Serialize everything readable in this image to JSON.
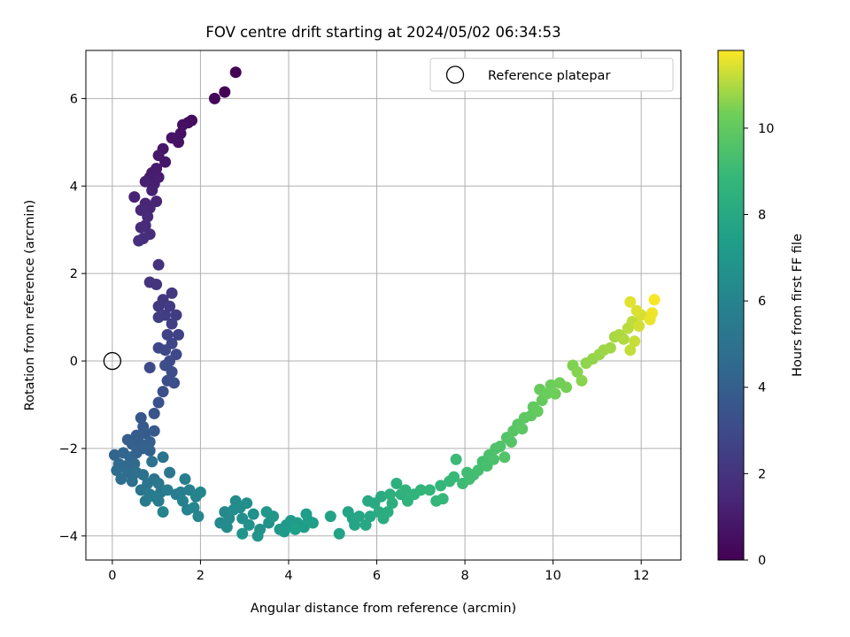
{
  "chart_data": {
    "type": "scatter",
    "title": "FOV centre drift starting at 2024/05/02 06:34:53",
    "xlabel": "Angular distance from reference (arcmin)",
    "ylabel": "Rotation from reference (arcmin)",
    "xlim": [
      -0.6,
      12.9
    ],
    "ylim": [
      -4.55,
      7.1
    ],
    "x_ticks": [
      0,
      2,
      4,
      6,
      8,
      10,
      12
    ],
    "y_ticks": [
      -4,
      -2,
      0,
      2,
      4,
      6
    ],
    "grid": true,
    "colormap": "viridis",
    "colorbar": {
      "label": "Hours from first FF file",
      "range": [
        0,
        11.8
      ],
      "ticks": [
        0,
        2,
        4,
        6,
        8,
        10
      ]
    },
    "legend": {
      "position": "top-right",
      "entries": [
        "Reference platepar"
      ]
    },
    "reference_point": {
      "x": 0,
      "y": 0
    },
    "points": [
      [
        2.8,
        6.6,
        0.0
      ],
      [
        2.55,
        6.15,
        0.08
      ],
      [
        2.32,
        6.0,
        0.15
      ],
      [
        1.8,
        5.5,
        0.35
      ],
      [
        1.72,
        5.45,
        0.45
      ],
      [
        1.6,
        5.4,
        0.55
      ],
      [
        1.55,
        5.2,
        0.6
      ],
      [
        1.5,
        5.0,
        0.65
      ],
      [
        1.35,
        5.1,
        0.7
      ],
      [
        1.15,
        4.85,
        0.8
      ],
      [
        1.2,
        4.55,
        0.85
      ],
      [
        1.05,
        4.7,
        0.9
      ],
      [
        1.0,
        4.4,
        0.95
      ],
      [
        0.9,
        4.3,
        1.0
      ],
      [
        0.85,
        4.2,
        1.05
      ],
      [
        1.05,
        4.2,
        1.1
      ],
      [
        0.95,
        4.05,
        1.15
      ],
      [
        0.75,
        4.1,
        1.2
      ],
      [
        0.9,
        3.9,
        1.25
      ],
      [
        0.5,
        3.75,
        1.3
      ],
      [
        0.75,
        3.6,
        1.35
      ],
      [
        1.0,
        3.65,
        1.4
      ],
      [
        0.85,
        3.5,
        1.45
      ],
      [
        0.65,
        3.45,
        1.5
      ],
      [
        0.8,
        3.3,
        1.55
      ],
      [
        0.75,
        3.1,
        1.6
      ],
      [
        0.65,
        3.05,
        1.65
      ],
      [
        0.85,
        2.9,
        1.7
      ],
      [
        0.7,
        2.8,
        1.75
      ],
      [
        0.6,
        2.75,
        1.8
      ],
      [
        1.05,
        2.2,
        1.9
      ],
      [
        0.85,
        1.8,
        2.0
      ],
      [
        1.0,
        1.75,
        2.05
      ],
      [
        1.35,
        1.55,
        2.15
      ],
      [
        1.15,
        1.4,
        2.2
      ],
      [
        1.05,
        1.25,
        2.25
      ],
      [
        1.3,
        1.25,
        2.3
      ],
      [
        1.45,
        1.05,
        2.35
      ],
      [
        1.2,
        1.05,
        2.4
      ],
      [
        1.05,
        1.0,
        2.45
      ],
      [
        1.35,
        0.85,
        2.55
      ],
      [
        1.5,
        0.6,
        2.65
      ],
      [
        1.25,
        0.6,
        2.7
      ],
      [
        1.35,
        0.4,
        2.8
      ],
      [
        1.05,
        0.3,
        2.85
      ],
      [
        1.2,
        0.25,
        2.9
      ],
      [
        1.45,
        0.15,
        2.95
      ],
      [
        1.3,
        0.0,
        3.0
      ],
      [
        0.85,
        -0.15,
        3.05
      ],
      [
        1.2,
        -0.1,
        3.1
      ],
      [
        1.35,
        -0.25,
        3.15
      ],
      [
        1.25,
        -0.45,
        3.2
      ],
      [
        1.4,
        -0.5,
        3.25
      ],
      [
        1.15,
        -0.7,
        3.3
      ],
      [
        1.05,
        -0.95,
        3.4
      ],
      [
        0.95,
        -1.2,
        3.5
      ],
      [
        0.65,
        -1.3,
        3.6
      ],
      [
        0.7,
        -1.5,
        3.7
      ],
      [
        0.95,
        -1.6,
        3.75
      ],
      [
        0.75,
        -1.65,
        3.8
      ],
      [
        0.55,
        -1.7,
        3.85
      ],
      [
        0.35,
        -1.8,
        3.9
      ],
      [
        0.6,
        -1.85,
        3.95
      ],
      [
        0.85,
        -1.85,
        4.0
      ],
      [
        0.45,
        -1.9,
        4.05
      ],
      [
        0.7,
        -2.0,
        4.1
      ],
      [
        0.55,
        -2.1,
        4.15
      ],
      [
        0.85,
        -2.05,
        4.2
      ],
      [
        0.05,
        -2.15,
        4.3
      ],
      [
        0.25,
        -2.1,
        4.35
      ],
      [
        0.4,
        -2.2,
        4.4
      ],
      [
        0.15,
        -2.35,
        4.5
      ],
      [
        0.3,
        -2.4,
        4.55
      ],
      [
        0.5,
        -2.35,
        4.6
      ],
      [
        0.1,
        -2.5,
        4.65
      ],
      [
        0.35,
        -2.55,
        4.7
      ],
      [
        0.2,
        -2.7,
        4.75
      ],
      [
        0.55,
        -2.55,
        4.8
      ],
      [
        0.45,
        -2.75,
        4.9
      ],
      [
        0.7,
        -2.6,
        4.95
      ],
      [
        0.9,
        -2.3,
        5.0
      ],
      [
        1.15,
        -2.2,
        5.05
      ],
      [
        0.95,
        -2.7,
        5.1
      ],
      [
        0.65,
        -2.95,
        5.15
      ],
      [
        0.8,
        -2.8,
        5.2
      ],
      [
        1.05,
        -2.8,
        5.25
      ],
      [
        1.3,
        -2.55,
        5.3
      ],
      [
        1.1,
        -3.0,
        5.35
      ],
      [
        0.85,
        -3.05,
        5.4
      ],
      [
        0.75,
        -3.2,
        5.45
      ],
      [
        1.05,
        -3.2,
        5.5
      ],
      [
        0.95,
        -3.1,
        5.55
      ],
      [
        1.25,
        -2.95,
        5.6
      ],
      [
        1.45,
        -3.05,
        5.65
      ],
      [
        1.65,
        -2.7,
        5.7
      ],
      [
        1.55,
        -3.0,
        5.75
      ],
      [
        1.75,
        -2.95,
        5.8
      ],
      [
        1.6,
        -3.2,
        5.85
      ],
      [
        1.7,
        -3.4,
        5.9
      ],
      [
        1.15,
        -3.45,
        5.95
      ],
      [
        1.9,
        -3.1,
        6.0
      ],
      [
        2.0,
        -3.0,
        6.05
      ],
      [
        1.85,
        -3.35,
        6.1
      ],
      [
        1.95,
        -3.55,
        6.15
      ],
      [
        2.55,
        -3.45,
        6.2
      ],
      [
        2.45,
        -3.7,
        6.25
      ],
      [
        2.65,
        -3.6,
        6.3
      ],
      [
        2.6,
        -3.8,
        6.35
      ],
      [
        2.8,
        -3.2,
        6.4
      ],
      [
        2.75,
        -3.4,
        6.45
      ],
      [
        2.9,
        -3.35,
        6.5
      ],
      [
        3.05,
        -3.25,
        6.55
      ],
      [
        2.95,
        -3.6,
        6.6
      ],
      [
        3.2,
        -3.5,
        6.65
      ],
      [
        3.1,
        -3.75,
        6.7
      ],
      [
        3.35,
        -3.85,
        6.75
      ],
      [
        3.55,
        -3.7,
        6.8
      ],
      [
        3.3,
        -4.0,
        6.85
      ],
      [
        2.95,
        -3.95,
        6.9
      ],
      [
        3.5,
        -3.45,
        6.95
      ],
      [
        3.65,
        -3.55,
        7.0
      ],
      [
        3.8,
        -3.85,
        7.05
      ],
      [
        3.95,
        -3.75,
        7.1
      ],
      [
        4.05,
        -3.65,
        7.15
      ],
      [
        3.9,
        -3.9,
        7.2
      ],
      [
        4.2,
        -3.7,
        7.25
      ],
      [
        4.35,
        -3.8,
        7.3
      ],
      [
        4.45,
        -3.65,
        7.35
      ],
      [
        4.4,
        -3.5,
        7.4
      ],
      [
        4.55,
        -3.7,
        7.45
      ],
      [
        4.15,
        -3.85,
        7.5
      ],
      [
        4.95,
        -3.55,
        7.6
      ],
      [
        5.15,
        -3.95,
        7.65
      ],
      [
        5.35,
        -3.45,
        7.7
      ],
      [
        5.45,
        -3.6,
        7.75
      ],
      [
        5.5,
        -3.75,
        7.8
      ],
      [
        5.6,
        -3.55,
        7.85
      ],
      [
        5.75,
        -3.75,
        7.9
      ],
      [
        5.85,
        -3.55,
        7.95
      ],
      [
        5.8,
        -3.2,
        8.0
      ],
      [
        5.95,
        -3.25,
        8.05
      ],
      [
        6.1,
        -3.1,
        8.1
      ],
      [
        6.05,
        -3.45,
        8.15
      ],
      [
        6.15,
        -3.6,
        8.2
      ],
      [
        6.25,
        -3.45,
        8.25
      ],
      [
        6.35,
        -3.25,
        8.3
      ],
      [
        6.3,
        -3.05,
        8.35
      ],
      [
        6.45,
        -2.8,
        8.4
      ],
      [
        6.55,
        -3.05,
        8.45
      ],
      [
        6.7,
        -3.2,
        8.5
      ],
      [
        6.65,
        -2.95,
        8.55
      ],
      [
        6.85,
        -3.05,
        8.6
      ],
      [
        7.0,
        -2.95,
        8.65
      ],
      [
        7.2,
        -2.95,
        8.7
      ],
      [
        7.35,
        -3.2,
        8.75
      ],
      [
        7.45,
        -2.85,
        8.8
      ],
      [
        7.5,
        -3.15,
        8.85
      ],
      [
        7.65,
        -2.75,
        8.9
      ],
      [
        7.75,
        -2.65,
        8.95
      ],
      [
        7.8,
        -2.25,
        9.0
      ],
      [
        7.95,
        -2.8,
        9.05
      ],
      [
        8.05,
        -2.55,
        9.1
      ],
      [
        8.1,
        -2.7,
        9.15
      ],
      [
        8.2,
        -2.6,
        9.2
      ],
      [
        8.3,
        -2.5,
        9.25
      ],
      [
        8.4,
        -2.3,
        9.3
      ],
      [
        8.5,
        -2.4,
        9.35
      ],
      [
        8.55,
        -2.15,
        9.4
      ],
      [
        8.65,
        -2.25,
        9.45
      ],
      [
        8.7,
        -2.0,
        9.5
      ],
      [
        8.8,
        -1.95,
        9.55
      ],
      [
        8.9,
        -2.2,
        9.6
      ],
      [
        8.95,
        -1.75,
        9.65
      ],
      [
        9.05,
        -1.85,
        9.7
      ],
      [
        9.1,
        -1.6,
        9.75
      ],
      [
        9.2,
        -1.45,
        9.8
      ],
      [
        9.3,
        -1.55,
        9.85
      ],
      [
        9.35,
        -1.3,
        9.9
      ],
      [
        9.5,
        -1.25,
        9.95
      ],
      [
        9.55,
        -1.05,
        10.0
      ],
      [
        9.65,
        -1.15,
        10.05
      ],
      [
        9.75,
        -0.9,
        10.1
      ],
      [
        9.7,
        -0.65,
        10.15
      ],
      [
        9.85,
        -0.75,
        10.2
      ],
      [
        9.95,
        -0.55,
        10.25
      ],
      [
        10.05,
        -0.75,
        10.3
      ],
      [
        10.15,
        -0.5,
        10.35
      ],
      [
        10.3,
        -0.6,
        10.4
      ],
      [
        10.45,
        -0.1,
        10.5
      ],
      [
        10.55,
        -0.25,
        10.55
      ],
      [
        10.65,
        -0.45,
        10.6
      ],
      [
        10.75,
        -0.05,
        10.65
      ],
      [
        10.9,
        0.05,
        10.7
      ],
      [
        11.05,
        0.15,
        10.75
      ],
      [
        11.15,
        0.25,
        10.8
      ],
      [
        11.3,
        0.3,
        10.85
      ],
      [
        11.4,
        0.55,
        10.9
      ],
      [
        11.5,
        0.6,
        10.95
      ],
      [
        11.6,
        0.5,
        11.0
      ],
      [
        11.7,
        0.75,
        11.1
      ],
      [
        11.8,
        0.9,
        11.15
      ],
      [
        11.75,
        0.25,
        11.2
      ],
      [
        11.85,
        0.45,
        11.25
      ],
      [
        11.95,
        0.8,
        11.35
      ],
      [
        12.0,
        1.05,
        11.4
      ],
      [
        11.9,
        1.15,
        11.45
      ],
      [
        11.75,
        1.35,
        11.5
      ],
      [
        12.2,
        0.95,
        11.6
      ],
      [
        12.25,
        1.1,
        11.65
      ],
      [
        12.3,
        1.4,
        11.75
      ]
    ]
  }
}
